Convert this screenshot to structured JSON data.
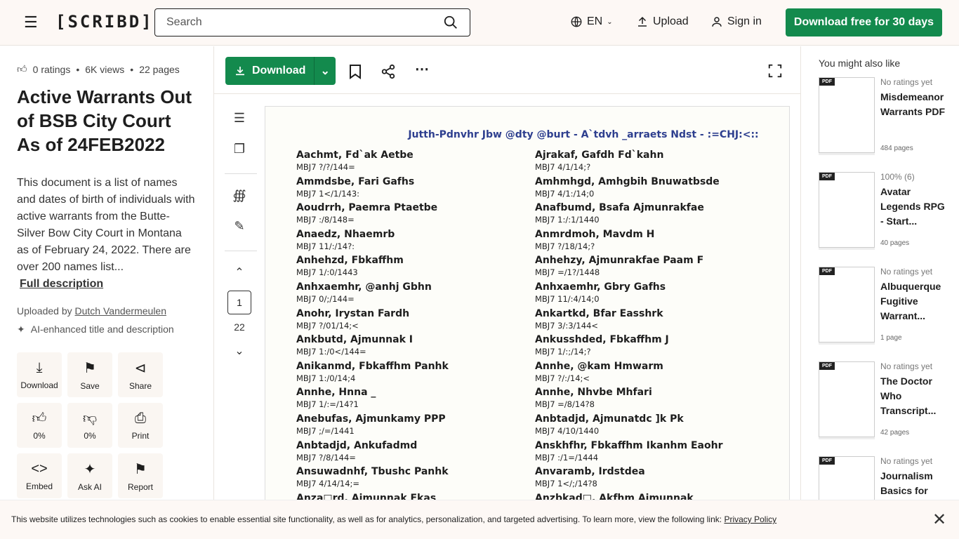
{
  "header": {
    "logo": "[SCRIBD]",
    "search_placeholder": "Search",
    "language": "EN",
    "upload": "Upload",
    "sign_in": "Sign in",
    "cta": "Download free for 30 days"
  },
  "doc_meta": {
    "ratings": "0 ratings",
    "views": "6K views",
    "pages": "22 pages",
    "title": "Active Warrants Out of BSB City Court As of 24FEB2022",
    "description": "This document is a list of names and dates of birth of individuals with active warrants from the Butte-Silver Bow City Court in Montana as of February 24, 2022. There are over 200 names list...",
    "full_description": "Full description",
    "uploaded_by_label": "Uploaded by",
    "uploader": "Dutch Vandermeulen",
    "ai_note": "AI-enhanced title and description"
  },
  "actions": [
    {
      "icon": "download-icon",
      "label": "Download"
    },
    {
      "icon": "bookmark-icon",
      "label": "Save"
    },
    {
      "icon": "share-icon",
      "label": "Share"
    },
    {
      "icon": "thumbs-up-icon",
      "label": "0%"
    },
    {
      "icon": "thumbs-down-icon",
      "label": "0%"
    },
    {
      "icon": "print-icon",
      "label": "Print"
    },
    {
      "icon": "embed-icon",
      "label": "Embed"
    },
    {
      "icon": "sparkle-icon",
      "label": "Ask AI"
    },
    {
      "icon": "flag-icon",
      "label": "Report"
    }
  ],
  "toolbar": {
    "download": "Download"
  },
  "pager": {
    "current": "1",
    "total": "22"
  },
  "document": {
    "heading": "Jutth-Pdnvhr Jbw @dty @burt - A`tdvh _arraets Ndst - :=CHJ:<::",
    "left": [
      [
        "Aachmt, Fd`ak Aetbe",
        "MBJ7 ?/?/144="
      ],
      [
        "Ammdsbe, Fari Gafhs",
        "MBJ7 1</1/143:"
      ],
      [
        "Aoudrrh, Paemra Ptaetbe",
        "MBJ7 :/8/148="
      ],
      [
        "Anaedz, Nhaemrb",
        "MBJ7 11/:/14?:"
      ],
      [
        "Anhehzd, Fbkaffhm",
        "MBJ7 1/:0/1443"
      ],
      [
        "Anhxaemhr, @anhj Gbhn",
        "MBJ7 0/;/144="
      ],
      [
        "Anohr, Irystan Fardh",
        "MBJ7 ?/01/14;<"
      ],
      [
        "Ankbutd, Ajmunnak I",
        "MBJ7 1:/0</144="
      ],
      [
        "Anikanmd, Fbkaffhm Panhk",
        "MBJ7 1:/0/14;4"
      ],
      [
        "Annhe, Hnna _",
        "MBJ7 1/:=/14?1"
      ],
      [
        "Anebufas, Ajmunkamy PPP",
        "MBJ7 ;/=/1441"
      ],
      [
        "Anbtadjd, Ankufadmd",
        "MBJ7 ?/8/144="
      ],
      [
        "Ansuwadnhf, Tbushc Panhk",
        "MBJ7 4/14/14;="
      ],
      [
        "Anza□rd, Aimunnak Fkas",
        ""
      ]
    ],
    "right": [
      [
        "Ajrakaf, Gafdh Fd`kahn",
        "MBJ7 4/1/14;?"
      ],
      [
        "Amhmhgd, Amhgbih Bnuwatbsde",
        "MBJ7 4/1:/14;0"
      ],
      [
        "Anafbumd, Bsafa Ajmunrakfae",
        "MBJ7 1:/:1/1440"
      ],
      [
        "Anmrdmoh, Mavdm H",
        "MBJ7 ?/18/14;?"
      ],
      [
        "Anhehzy, Ajmunrakfae Paam F",
        "MBJ7 =/1?/1448"
      ],
      [
        "Anhxaemhr, Gbry Gafhs",
        "MBJ7 11/:4/14;0"
      ],
      [
        "Ankartkd, Bfar Easshrk",
        "MBJ7 3/:3/144<"
      ],
      [
        "Ankusshded, Fbkaffhm J",
        "MBJ7 1/:;/14;?"
      ],
      [
        "Annhe, @kam Hmwarm",
        "MBJ7 ?/:/14;<"
      ],
      [
        "Annhe, Nhvbe Mhfari",
        "MBJ7 =/8/14?8"
      ],
      [
        "Anbtadjd, Ajmunatdc ]k Pk",
        "MBJ7 4/10/1440"
      ],
      [
        "Anskhfhr, Fbkaffhm Ikanhm Eaohr",
        "MBJ7 :/1=/1444"
      ],
      [
        "Anvaramb, Irdstdea",
        "MBJ7 1</;/14?8"
      ],
      [
        "Anzbkad□, Akfhm Aimunnak",
        ""
      ]
    ]
  },
  "sidebar": {
    "heading": "You might also like",
    "badge": "PDF",
    "items": [
      {
        "rating": "No ratings yet",
        "title": "Misdemeanor Warrants PDF",
        "pages": "484 pages"
      },
      {
        "rating": "100% (6)",
        "title": "Avatar Legends RPG - Start...",
        "pages": "40 pages"
      },
      {
        "rating": "No ratings yet",
        "title": "Albuquerque Fugitive Warrant...",
        "pages": "1 page"
      },
      {
        "rating": "No ratings yet",
        "title": "The Doctor Who Transcript...",
        "pages": "42 pages"
      },
      {
        "rating": "No ratings yet",
        "title": "Journalism Basics for",
        "pages": ""
      }
    ]
  },
  "cookie": {
    "text": "This website utilizes technologies such as cookies to enable essential site functionality, as well as for analytics, personalization, and targeted advertising. To learn more, view the following link:",
    "link": "Privacy Policy"
  },
  "colors": {
    "brand_green": "#138a4d",
    "doc_heading": "#2e3f8f",
    "header_bg": "#fdf8f5"
  }
}
